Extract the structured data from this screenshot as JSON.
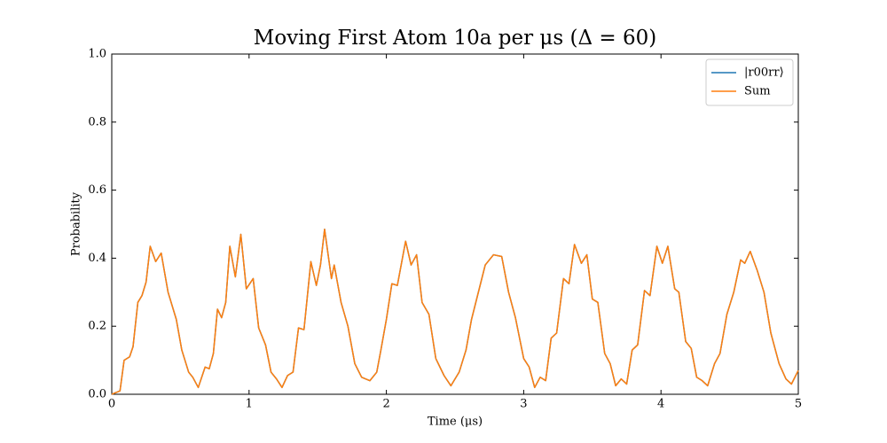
{
  "chart_data": {
    "type": "line",
    "title": "Moving First Atom 10a per μs (Δ = 60)",
    "xlabel": "Time (μs)",
    "ylabel": "Probability",
    "x": [
      0,
      0.06,
      0.09,
      0.13,
      0.155,
      0.19,
      0.22,
      0.25,
      0.28,
      0.32,
      0.36,
      0.41,
      0.47,
      0.51,
      0.56,
      0.59,
      0.63,
      0.68,
      0.71,
      0.74,
      0.77,
      0.8,
      0.83,
      0.86,
      0.9,
      0.94,
      0.98,
      1.03,
      1.07,
      1.12,
      1.16,
      1.2,
      1.24,
      1.28,
      1.32,
      1.36,
      1.4,
      1.45,
      1.49,
      1.52,
      1.55,
      1.6,
      1.62,
      1.67,
      1.72,
      1.77,
      1.82,
      1.88,
      1.93,
      1.96,
      2.0,
      2.04,
      2.08,
      2.14,
      2.18,
      2.22,
      2.26,
      2.31,
      2.36,
      2.42,
      2.47,
      2.53,
      2.58,
      2.62,
      2.67,
      2.72,
      2.78,
      2.84,
      2.89,
      2.94,
      3.0,
      3.04,
      3.08,
      3.12,
      3.16,
      3.2,
      3.24,
      3.29,
      3.33,
      3.37,
      3.42,
      3.46,
      3.5,
      3.54,
      3.59,
      3.63,
      3.67,
      3.71,
      3.75,
      3.79,
      3.83,
      3.88,
      3.92,
      3.97,
      4.01,
      4.05,
      4.1,
      4.13,
      4.18,
      4.22,
      4.26,
      4.3,
      4.34,
      4.39,
      4.43,
      4.48,
      4.53,
      4.58,
      4.61,
      4.65,
      4.7,
      4.75,
      4.8,
      4.86,
      4.91,
      4.95,
      5.0
    ],
    "series": [
      {
        "name": "|r00rr⟩",
        "color": "#1f77b4",
        "values": [
          0,
          0.01,
          0.1,
          0.11,
          0.14,
          0.27,
          0.29,
          0.33,
          0.435,
          0.39,
          0.415,
          0.3,
          0.22,
          0.13,
          0.065,
          0.05,
          0.02,
          0.08,
          0.075,
          0.12,
          0.25,
          0.225,
          0.27,
          0.435,
          0.345,
          0.47,
          0.31,
          0.34,
          0.195,
          0.145,
          0.065,
          0.045,
          0.02,
          0.055,
          0.065,
          0.195,
          0.19,
          0.39,
          0.32,
          0.38,
          0.485,
          0.34,
          0.38,
          0.27,
          0.2,
          0.09,
          0.05,
          0.04,
          0.065,
          0.13,
          0.22,
          0.325,
          0.32,
          0.45,
          0.38,
          0.41,
          0.27,
          0.235,
          0.105,
          0.055,
          0.025,
          0.065,
          0.13,
          0.22,
          0.3,
          0.38,
          0.41,
          0.405,
          0.3,
          0.225,
          0.105,
          0.08,
          0.02,
          0.05,
          0.04,
          0.165,
          0.18,
          0.34,
          0.325,
          0.44,
          0.385,
          0.41,
          0.28,
          0.27,
          0.12,
          0.09,
          0.025,
          0.045,
          0.03,
          0.13,
          0.145,
          0.305,
          0.29,
          0.435,
          0.385,
          0.435,
          0.31,
          0.3,
          0.155,
          0.135,
          0.05,
          0.04,
          0.025,
          0.09,
          0.12,
          0.235,
          0.3,
          0.395,
          0.385,
          0.42,
          0.365,
          0.3,
          0.18,
          0.09,
          0.045,
          0.03,
          0.07
        ]
      },
      {
        "name": "Sum",
        "color": "#ff7f0e",
        "values": [
          0,
          0.01,
          0.1,
          0.11,
          0.14,
          0.27,
          0.29,
          0.33,
          0.435,
          0.39,
          0.415,
          0.3,
          0.22,
          0.13,
          0.065,
          0.05,
          0.02,
          0.08,
          0.075,
          0.12,
          0.25,
          0.225,
          0.27,
          0.435,
          0.345,
          0.47,
          0.31,
          0.34,
          0.195,
          0.145,
          0.065,
          0.045,
          0.02,
          0.055,
          0.065,
          0.195,
          0.19,
          0.39,
          0.32,
          0.38,
          0.485,
          0.34,
          0.38,
          0.27,
          0.2,
          0.09,
          0.05,
          0.04,
          0.065,
          0.13,
          0.22,
          0.325,
          0.32,
          0.45,
          0.38,
          0.41,
          0.27,
          0.235,
          0.105,
          0.055,
          0.025,
          0.065,
          0.13,
          0.22,
          0.3,
          0.38,
          0.41,
          0.405,
          0.3,
          0.225,
          0.105,
          0.08,
          0.02,
          0.05,
          0.04,
          0.165,
          0.18,
          0.34,
          0.325,
          0.44,
          0.385,
          0.41,
          0.28,
          0.27,
          0.12,
          0.09,
          0.025,
          0.045,
          0.03,
          0.13,
          0.145,
          0.305,
          0.29,
          0.435,
          0.385,
          0.435,
          0.31,
          0.3,
          0.155,
          0.135,
          0.05,
          0.04,
          0.025,
          0.09,
          0.12,
          0.235,
          0.3,
          0.395,
          0.385,
          0.42,
          0.365,
          0.3,
          0.18,
          0.09,
          0.045,
          0.03,
          0.07
        ]
      }
    ],
    "xlim": [
      0,
      5
    ],
    "xticks": [
      0,
      1,
      2,
      3,
      4,
      5
    ],
    "ylim": [
      0,
      1
    ],
    "yticks": [
      {
        "value": 0,
        "label": "0.0"
      },
      0.2,
      0.4,
      0.6,
      0.8,
      {
        "value": 1,
        "label": "1.0"
      }
    ],
    "grid": false,
    "legend": "upper right"
  }
}
